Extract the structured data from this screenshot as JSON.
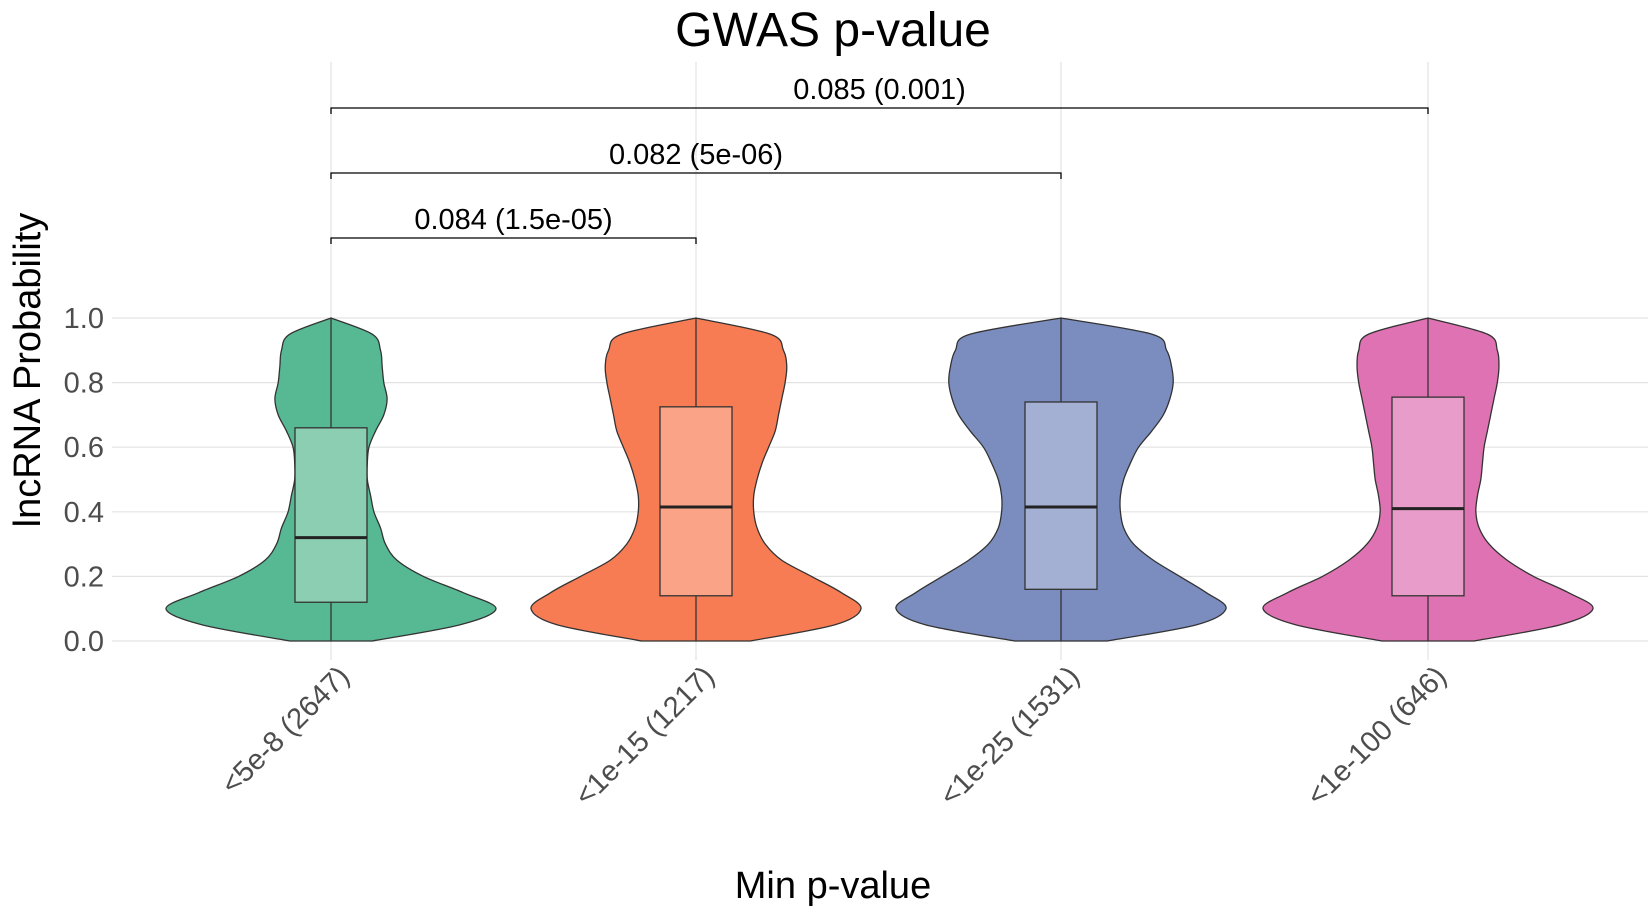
{
  "chart_data": {
    "type": "violin",
    "title": "GWAS p-value",
    "xlabel": "Min p-value",
    "ylabel": "lncRNA Probability",
    "ylim": [
      0,
      1
    ],
    "yticks": [
      0.0,
      0.2,
      0.4,
      0.6,
      0.8,
      1.0
    ],
    "ytick_labels": [
      "0.0",
      "0.2",
      "0.4",
      "0.6",
      "0.8",
      "1.0"
    ],
    "grid": true,
    "categories": [
      "<5e-8 (2647)",
      "<1e-15 (1217)",
      "<1e-25 (1531)",
      "<1e-100 (646)"
    ],
    "colors": [
      "#57b994",
      "#f87c53",
      "#7b8dbf",
      "#df72b2"
    ],
    "box_colors": [
      "#8bceb2",
      "#faa387",
      "#a4b0d3",
      "#e89cc9"
    ],
    "boxes": [
      {
        "q1": 0.12,
        "median": 0.32,
        "q3": 0.66,
        "min": 0.0,
        "max": 1.0
      },
      {
        "q1": 0.14,
        "median": 0.415,
        "q3": 0.725,
        "min": 0.0,
        "max": 1.0
      },
      {
        "q1": 0.16,
        "median": 0.415,
        "q3": 0.74,
        "min": 0.0,
        "max": 1.0
      },
      {
        "q1": 0.14,
        "median": 0.41,
        "q3": 0.755,
        "min": 0.0,
        "max": 1.0
      }
    ],
    "violins": [
      {
        "y": [
          0.0,
          0.05,
          0.1,
          0.15,
          0.2,
          0.25,
          0.3,
          0.35,
          0.4,
          0.45,
          0.5,
          0.55,
          0.6,
          0.65,
          0.7,
          0.75,
          0.8,
          0.85,
          0.9,
          0.95,
          1.0
        ],
        "density": [
          0.25,
          0.78,
          1.0,
          0.8,
          0.56,
          0.4,
          0.33,
          0.3,
          0.26,
          0.24,
          0.22,
          0.22,
          0.23,
          0.27,
          0.32,
          0.34,
          0.32,
          0.31,
          0.3,
          0.25,
          0.0
        ]
      },
      {
        "y": [
          0.0,
          0.05,
          0.1,
          0.15,
          0.2,
          0.25,
          0.3,
          0.35,
          0.4,
          0.45,
          0.5,
          0.55,
          0.6,
          0.65,
          0.7,
          0.75,
          0.8,
          0.85,
          0.9,
          0.95,
          1.0
        ],
        "density": [
          0.33,
          0.84,
          1.0,
          0.88,
          0.7,
          0.52,
          0.42,
          0.37,
          0.35,
          0.35,
          0.37,
          0.4,
          0.44,
          0.48,
          0.5,
          0.52,
          0.54,
          0.55,
          0.53,
          0.45,
          0.0
        ]
      },
      {
        "y": [
          0.0,
          0.05,
          0.1,
          0.15,
          0.2,
          0.25,
          0.3,
          0.35,
          0.4,
          0.45,
          0.5,
          0.55,
          0.6,
          0.65,
          0.7,
          0.75,
          0.8,
          0.85,
          0.9,
          0.95,
          1.0
        ],
        "density": [
          0.28,
          0.82,
          1.0,
          0.88,
          0.72,
          0.56,
          0.44,
          0.38,
          0.36,
          0.36,
          0.38,
          0.42,
          0.47,
          0.55,
          0.62,
          0.66,
          0.68,
          0.67,
          0.64,
          0.55,
          0.0
        ]
      },
      {
        "y": [
          0.0,
          0.05,
          0.1,
          0.15,
          0.2,
          0.25,
          0.3,
          0.35,
          0.4,
          0.45,
          0.5,
          0.55,
          0.6,
          0.65,
          0.7,
          0.75,
          0.8,
          0.85,
          0.9,
          0.95,
          1.0
        ],
        "density": [
          0.28,
          0.8,
          1.0,
          0.85,
          0.64,
          0.48,
          0.37,
          0.31,
          0.29,
          0.3,
          0.32,
          0.33,
          0.34,
          0.36,
          0.38,
          0.4,
          0.42,
          0.43,
          0.42,
          0.36,
          0.0
        ]
      }
    ],
    "comparisons": [
      {
        "from": 0,
        "to": 1,
        "label": "0.084 (1.5e-05)"
      },
      {
        "from": 0,
        "to": 2,
        "label": "0.082 (5e-06)"
      },
      {
        "from": 0,
        "to": 3,
        "label": "0.085 (0.001)"
      }
    ]
  }
}
